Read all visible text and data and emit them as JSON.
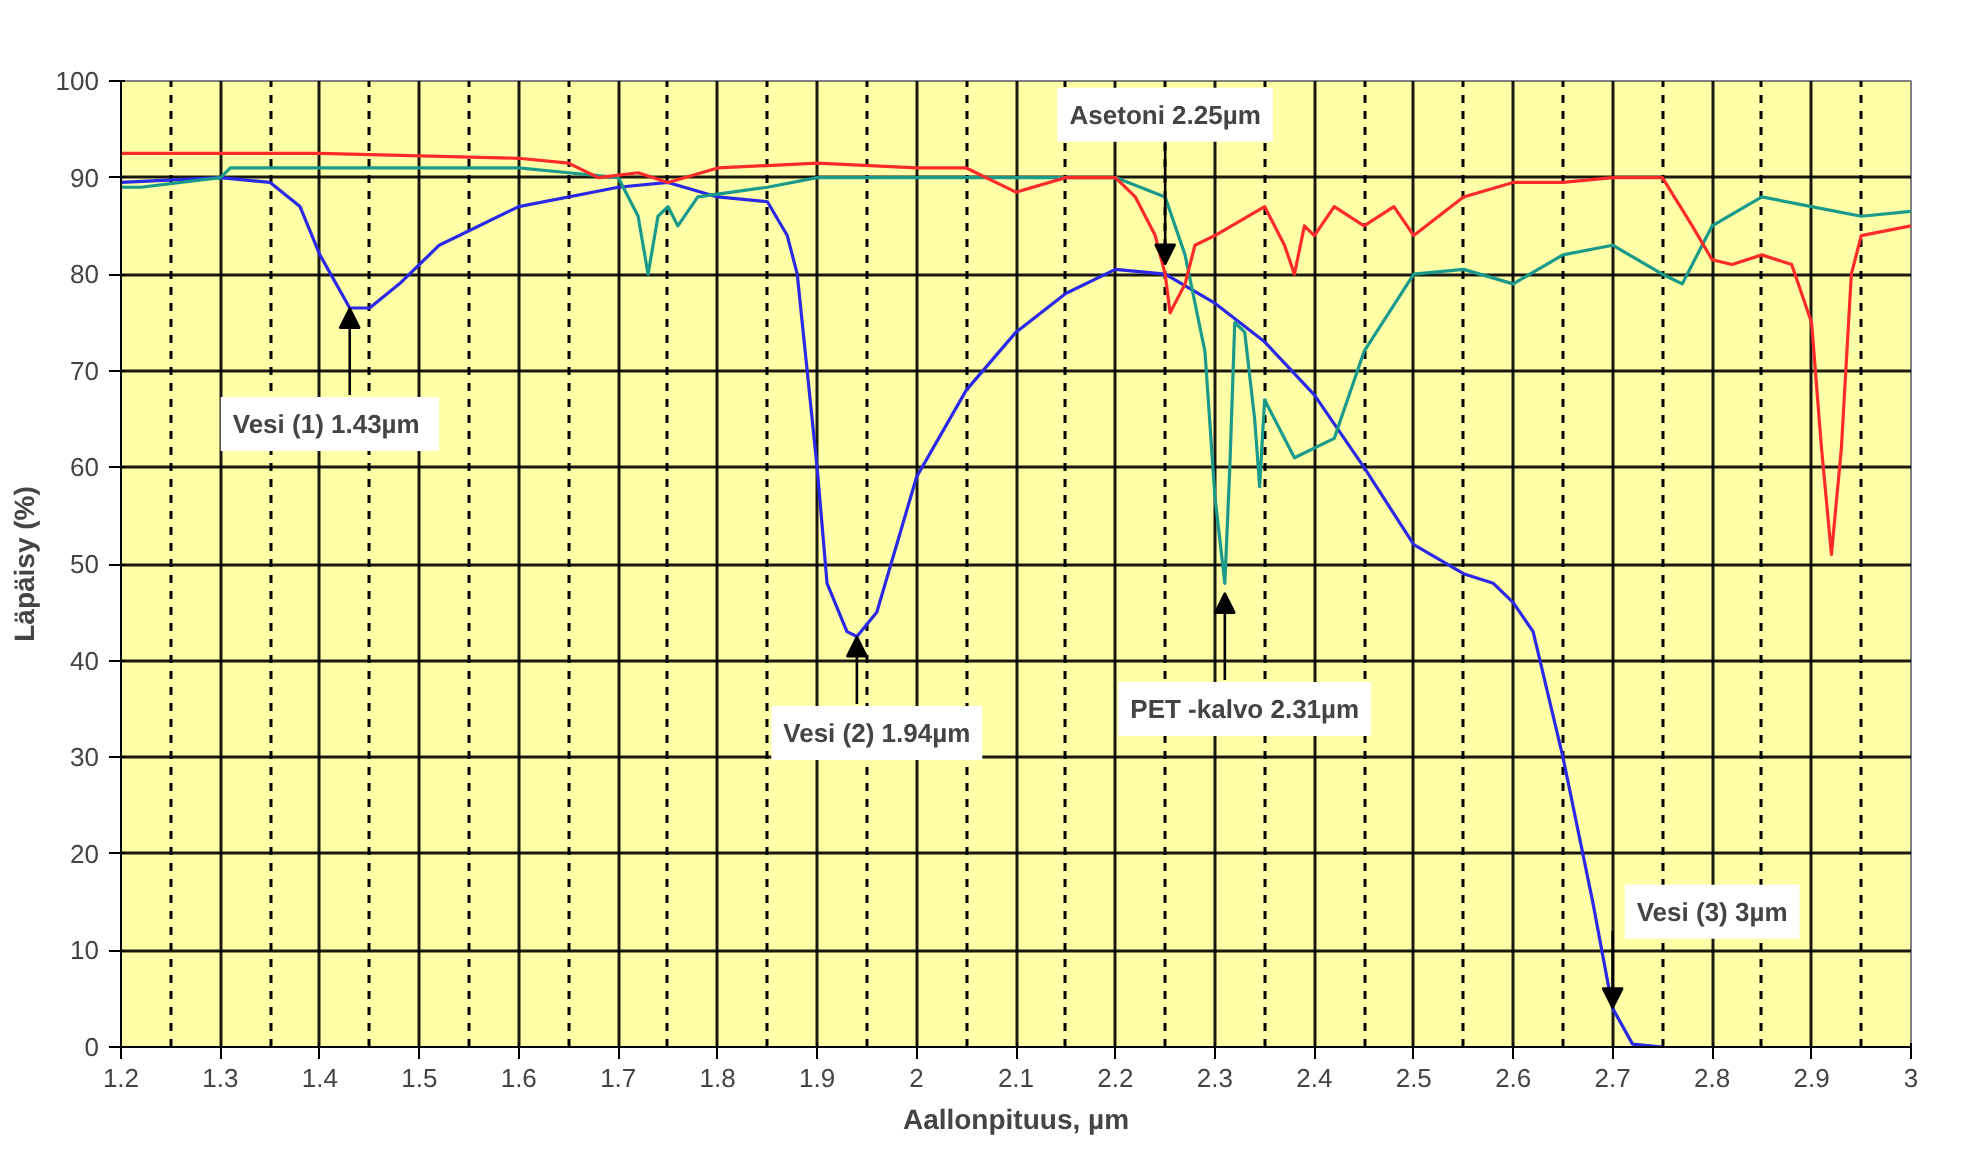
{
  "chart_data": {
    "type": "line",
    "xlabel": "Aallonpituus, µm",
    "ylabel": "Läpäisy (%)",
    "xlim": [
      1.2,
      3
    ],
    "ylim": [
      0,
      100
    ],
    "xticks": [
      1.2,
      1.3,
      1.4,
      1.5,
      1.6,
      1.7,
      1.8,
      1.9,
      2,
      2.1,
      2.2,
      2.3,
      2.4,
      2.5,
      2.6,
      2.7,
      2.8,
      2.9,
      3
    ],
    "yticks": [
      0,
      10,
      20,
      30,
      40,
      50,
      60,
      70,
      80,
      90,
      100
    ],
    "grid": true,
    "marker": "none",
    "line_style": "solid",
    "series": [
      {
        "color": "#2a2ae6",
        "x": [
          1.2,
          1.3,
          1.35,
          1.38,
          1.4,
          1.43,
          1.45,
          1.48,
          1.52,
          1.6,
          1.7,
          1.75,
          1.8,
          1.85,
          1.87,
          1.88,
          1.9,
          1.91,
          1.93,
          1.94,
          1.96,
          1.98,
          2.0,
          2.05,
          2.1,
          2.15,
          2.2,
          2.25,
          2.3,
          2.35,
          2.4,
          2.45,
          2.5,
          2.55,
          2.58,
          2.6,
          2.62,
          2.65,
          2.68,
          2.7,
          2.72,
          2.75
        ],
        "values": [
          89.5,
          90,
          89.5,
          87,
          82,
          76.5,
          76.5,
          79,
          83,
          87,
          89,
          89.5,
          88,
          87.5,
          84,
          80,
          60,
          48,
          43,
          42.5,
          45,
          52,
          59,
          68,
          74,
          78,
          80.5,
          80,
          77,
          73,
          67.5,
          60,
          52,
          49,
          48,
          46,
          43,
          30,
          15,
          4,
          0.3,
          0
        ]
      },
      {
        "color": "#1a9a8a",
        "x": [
          1.2,
          1.22,
          1.3,
          1.31,
          1.4,
          1.6,
          1.65,
          1.7,
          1.72,
          1.73,
          1.74,
          1.75,
          1.76,
          1.78,
          1.85,
          1.9,
          2.0,
          2.1,
          2.2,
          2.25,
          2.27,
          2.29,
          2.3,
          2.31,
          2.315,
          2.32,
          2.33,
          2.34,
          2.345,
          2.35,
          2.37,
          2.38,
          2.42,
          2.45,
          2.5,
          2.55,
          2.6,
          2.65,
          2.7,
          2.75,
          2.77,
          2.8,
          2.85,
          2.9,
          2.95,
          3.0
        ],
        "values": [
          89,
          89,
          90,
          91,
          91,
          91,
          90.5,
          90,
          86,
          80,
          86,
          87,
          85,
          88,
          89,
          90,
          90,
          90,
          90,
          88,
          82,
          72,
          57,
          48,
          60,
          75,
          74,
          65,
          58,
          67,
          63,
          61,
          63,
          72,
          80,
          80.5,
          79,
          82,
          83,
          80,
          79,
          85,
          88,
          87,
          86,
          86.5
        ]
      },
      {
        "color": "#ff2a2a",
        "x": [
          1.2,
          1.4,
          1.6,
          1.65,
          1.68,
          1.72,
          1.75,
          1.8,
          1.9,
          2.0,
          2.05,
          2.1,
          2.15,
          2.2,
          2.22,
          2.24,
          2.25,
          2.255,
          2.27,
          2.28,
          2.3,
          2.35,
          2.37,
          2.38,
          2.39,
          2.4,
          2.42,
          2.45,
          2.48,
          2.5,
          2.55,
          2.6,
          2.65,
          2.7,
          2.75,
          2.78,
          2.8,
          2.82,
          2.85,
          2.88,
          2.9,
          2.91,
          2.92,
          2.93,
          2.94,
          2.95,
          3.0
        ],
        "values": [
          92.5,
          92.5,
          92,
          91.5,
          90,
          90.5,
          89.5,
          91,
          91.5,
          91,
          91,
          88.5,
          90,
          90,
          88,
          84,
          80,
          76,
          79,
          83,
          84,
          87,
          83,
          80,
          85,
          84,
          87,
          85,
          87,
          84,
          88,
          89.5,
          89.5,
          90,
          90,
          85,
          81.5,
          81,
          82,
          81,
          75,
          62,
          51,
          62,
          80,
          84,
          85
        ]
      }
    ],
    "annotations": [
      {
        "text": "Vesi  (1) 1.43µm",
        "x": 1.43,
        "y": 76.5
      },
      {
        "text": "Vesi (2) 1.94µm",
        "x": 1.94,
        "y": 42.5
      },
      {
        "text": "Asetoni 2.25µm",
        "x": 2.25,
        "y": 81
      },
      {
        "text": "PET -kalvo 2.31µm",
        "x": 2.31,
        "y": 47
      },
      {
        "text": "Vesi (3) 3µm",
        "x": 2.7,
        "y": 4
      }
    ]
  }
}
